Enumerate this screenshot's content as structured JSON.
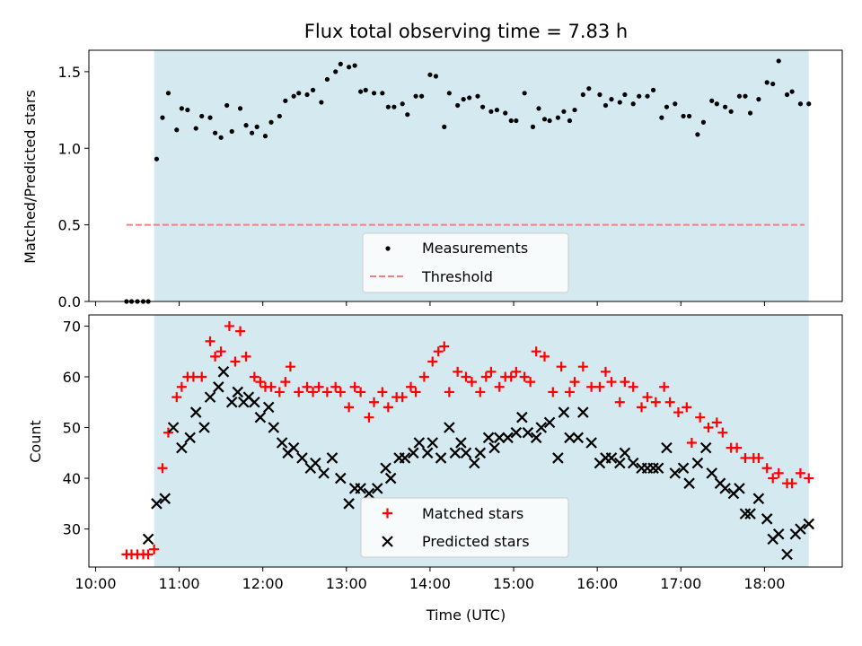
{
  "chart_data": [
    {
      "type": "scatter",
      "title": "Flux total observing time = 7.83 h",
      "xlabel": "",
      "ylabel": "Matched/Predicted stars",
      "ylim": [
        0,
        1.64
      ],
      "yticks": [
        0.0,
        0.5,
        1.0,
        1.5
      ],
      "ytick_labels": [
        "0.0",
        "0.5",
        "1.0",
        "1.5"
      ],
      "xlim": [
        9.92,
        18.93
      ],
      "x_unit": "hours UTC",
      "shaded_span": [
        10.7,
        18.53
      ],
      "shade_color": "#d4eaf0",
      "grid": false,
      "legend": {
        "placement": "lower center",
        "entries": [
          "Measurements",
          "Threshold"
        ]
      },
      "threshold": {
        "name": "Threshold",
        "x": [
          10.37,
          18.48
        ],
        "y": 0.5,
        "color": "#f08080",
        "style": "dashed"
      },
      "series": [
        {
          "name": "Measurements",
          "color": "#000000",
          "marker": "dot",
          "x": [
            10.37,
            10.43,
            10.5,
            10.57,
            10.63,
            10.73,
            10.8,
            10.87,
            10.97,
            11.03,
            11.1,
            11.2,
            11.27,
            11.37,
            11.43,
            11.5,
            11.57,
            11.63,
            11.73,
            11.8,
            11.87,
            11.93,
            12.03,
            12.1,
            12.2,
            12.27,
            12.37,
            12.43,
            12.53,
            12.6,
            12.7,
            12.77,
            12.87,
            12.93,
            13.03,
            13.1,
            13.17,
            13.23,
            13.33,
            13.43,
            13.5,
            13.57,
            13.67,
            13.73,
            13.83,
            13.9,
            14.0,
            14.07,
            14.17,
            14.23,
            14.33,
            14.4,
            14.47,
            14.57,
            14.63,
            14.73,
            14.8,
            14.9,
            14.97,
            15.03,
            15.13,
            15.23,
            15.3,
            15.37,
            15.43,
            15.53,
            15.6,
            15.67,
            15.73,
            15.83,
            15.9,
            16.03,
            16.1,
            16.17,
            16.27,
            16.33,
            16.43,
            16.5,
            16.6,
            16.67,
            16.77,
            16.83,
            16.93,
            17.03,
            17.1,
            17.2,
            17.27,
            17.37,
            17.43,
            17.53,
            17.6,
            17.7,
            17.77,
            17.83,
            17.93,
            18.03,
            18.1,
            18.17,
            18.27,
            18.33,
            18.43,
            18.53
          ],
          "y": [
            0,
            0,
            0,
            0,
            0,
            0.93,
            1.2,
            1.36,
            1.12,
            1.26,
            1.25,
            1.13,
            1.21,
            1.2,
            1.1,
            1.07,
            1.28,
            1.11,
            1.26,
            1.15,
            1.1,
            1.14,
            1.08,
            1.17,
            1.21,
            1.31,
            1.34,
            1.36,
            1.35,
            1.38,
            1.3,
            1.45,
            1.5,
            1.55,
            1.53,
            1.54,
            1.37,
            1.38,
            1.36,
            1.36,
            1.27,
            1.27,
            1.29,
            1.22,
            1.34,
            1.34,
            1.48,
            1.47,
            1.14,
            1.36,
            1.28,
            1.32,
            1.33,
            1.34,
            1.27,
            1.24,
            1.25,
            1.23,
            1.18,
            1.18,
            1.36,
            1.14,
            1.26,
            1.19,
            1.18,
            1.2,
            1.24,
            1.18,
            1.25,
            1.35,
            1.39,
            1.35,
            1.28,
            1.32,
            1.3,
            1.35,
            1.29,
            1.34,
            1.34,
            1.38,
            1.2,
            1.27,
            1.29,
            1.21,
            1.21,
            1.09,
            1.17,
            1.31,
            1.29,
            1.27,
            1.24,
            1.34,
            1.34,
            1.23,
            1.32,
            1.43,
            1.42,
            1.57,
            1.35,
            1.37,
            1.29,
            1.29
          ]
        }
      ]
    },
    {
      "type": "scatter",
      "title": "",
      "xlabel": "Time (UTC)",
      "ylabel": "Count",
      "ylim": [
        22.5,
        72.2
      ],
      "yticks": [
        30,
        40,
        50,
        60,
        70
      ],
      "ytick_labels": [
        "30",
        "40",
        "50",
        "60",
        "70"
      ],
      "xlim": [
        9.92,
        18.93
      ],
      "xticks": [
        10,
        11,
        12,
        13,
        14,
        15,
        16,
        17,
        18
      ],
      "xtick_labels": [
        "10:00",
        "11:00",
        "12:00",
        "13:00",
        "14:00",
        "15:00",
        "16:00",
        "17:00",
        "18:00"
      ],
      "shaded_span": [
        10.7,
        18.53
      ],
      "shade_color": "#d4eaf0",
      "grid": false,
      "legend": {
        "placement": "lower center",
        "entries": [
          "Matched stars",
          "Predicted stars"
        ]
      },
      "series": [
        {
          "name": "Matched stars",
          "color": "#ff0000",
          "marker": "plus",
          "x": [
            10.37,
            10.43,
            10.5,
            10.57,
            10.63,
            10.7,
            10.8,
            10.87,
            10.97,
            11.03,
            11.1,
            11.17,
            11.27,
            11.37,
            11.43,
            11.5,
            11.6,
            11.67,
            11.73,
            11.8,
            11.9,
            11.97,
            12.03,
            12.1,
            12.2,
            12.27,
            12.33,
            12.43,
            12.53,
            12.6,
            12.67,
            12.77,
            12.87,
            12.93,
            13.03,
            13.1,
            13.17,
            13.27,
            13.33,
            13.43,
            13.5,
            13.6,
            13.67,
            13.77,
            13.83,
            13.93,
            14.03,
            14.1,
            14.17,
            14.23,
            14.33,
            14.43,
            14.5,
            14.6,
            14.67,
            14.73,
            14.83,
            14.9,
            14.97,
            15.03,
            15.13,
            15.2,
            15.27,
            15.37,
            15.47,
            15.57,
            15.67,
            15.73,
            15.83,
            15.93,
            16.03,
            16.1,
            16.17,
            16.27,
            16.33,
            16.43,
            16.53,
            16.6,
            16.7,
            16.8,
            16.87,
            16.97,
            17.07,
            17.13,
            17.23,
            17.33,
            17.43,
            17.5,
            17.6,
            17.67,
            17.77,
            17.87,
            17.93,
            18.03,
            18.1,
            18.17,
            18.27,
            18.33,
            18.43,
            18.53
          ],
          "y": [
            25,
            25,
            25,
            25,
            25,
            26,
            42,
            49,
            56,
            58,
            60,
            60,
            60,
            67,
            64,
            65,
            70,
            63,
            69,
            64,
            60,
            59,
            58,
            58,
            57,
            59,
            62,
            57,
            58,
            57,
            58,
            57,
            58,
            57,
            54,
            58,
            57,
            52,
            55,
            57,
            54,
            56,
            56,
            58,
            57,
            60,
            63,
            65,
            66,
            57,
            61,
            60,
            59,
            57,
            60,
            61,
            58,
            60,
            60,
            61,
            60,
            59,
            65,
            64,
            57,
            62,
            57,
            59,
            62,
            58,
            58,
            61,
            59,
            55,
            59,
            58,
            54,
            56,
            55,
            58,
            55,
            53,
            54,
            47,
            52,
            50,
            51,
            49,
            46,
            46,
            44,
            44,
            44,
            42,
            40,
            41,
            39,
            39,
            41,
            40
          ]
        },
        {
          "name": "Predicted stars",
          "color": "#000000",
          "marker": "x",
          "x": [
            10.63,
            10.73,
            10.83,
            10.93,
            11.03,
            11.13,
            11.2,
            11.3,
            11.37,
            11.47,
            11.53,
            11.63,
            11.7,
            11.77,
            11.83,
            11.9,
            11.97,
            12.07,
            12.13,
            12.23,
            12.3,
            12.37,
            12.47,
            12.57,
            12.63,
            12.73,
            12.83,
            12.93,
            13.03,
            13.1,
            13.17,
            13.27,
            13.37,
            13.47,
            13.53,
            13.63,
            13.7,
            13.8,
            13.87,
            13.97,
            14.03,
            14.13,
            14.23,
            14.3,
            14.37,
            14.43,
            14.53,
            14.6,
            14.7,
            14.77,
            14.83,
            14.93,
            15.03,
            15.1,
            15.17,
            15.27,
            15.33,
            15.43,
            15.53,
            15.6,
            15.67,
            15.77,
            15.83,
            15.93,
            16.03,
            16.1,
            16.17,
            16.27,
            16.33,
            16.43,
            16.53,
            16.6,
            16.67,
            16.73,
            16.83,
            16.93,
            17.03,
            17.1,
            17.2,
            17.3,
            17.37,
            17.47,
            17.53,
            17.63,
            17.7,
            17.77,
            17.83,
            17.93,
            18.03,
            18.1,
            18.17,
            18.27,
            18.37,
            18.43,
            18.53
          ],
          "y": [
            28,
            35,
            36,
            50,
            46,
            48,
            53,
            50,
            56,
            58,
            61,
            55,
            57,
            55,
            56,
            55,
            52,
            54,
            50,
            47,
            45,
            46,
            44,
            42,
            43,
            41,
            44,
            40,
            35,
            38,
            38,
            37,
            38,
            42,
            40,
            44,
            44,
            45,
            47,
            45,
            47,
            44,
            50,
            45,
            47,
            45,
            43,
            45,
            48,
            46,
            48,
            48,
            49,
            52,
            49,
            48,
            50,
            51,
            44,
            53,
            48,
            48,
            53,
            47,
            43,
            44,
            44,
            43,
            45,
            43,
            42,
            42,
            42,
            42,
            46,
            41,
            42,
            39,
            43,
            46,
            41,
            39,
            38,
            37,
            38,
            33,
            33,
            36,
            32,
            28,
            29,
            25,
            29,
            30,
            31
          ]
        }
      ]
    }
  ]
}
